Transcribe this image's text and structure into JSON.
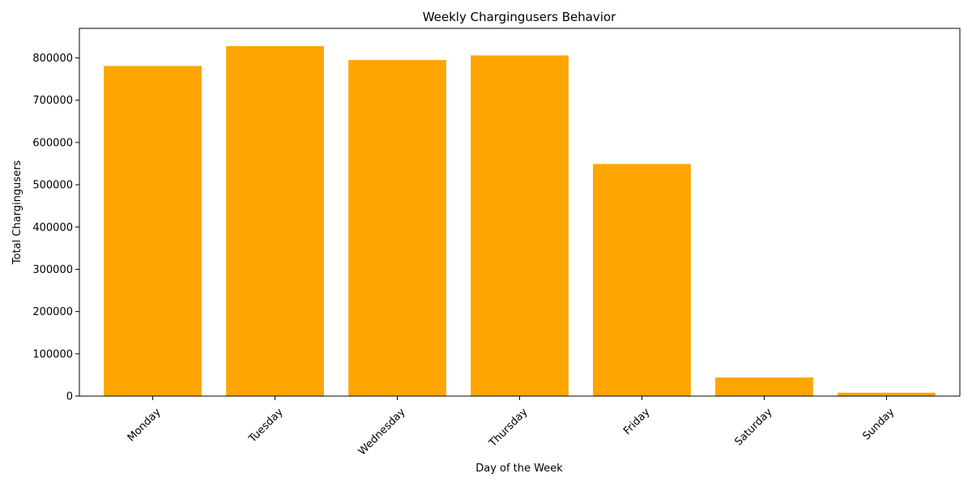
{
  "chart_data": {
    "type": "bar",
    "title": "Weekly Chargingusers Behavior",
    "xlabel": "Day of the Week",
    "ylabel": "Total Chargingusers",
    "categories": [
      "Monday",
      "Tuesday",
      "Wednesday",
      "Thursday",
      "Friday",
      "Saturday",
      "Sunday"
    ],
    "values": [
      781000,
      828000,
      795000,
      806000,
      549000,
      44000,
      8000
    ],
    "ylim": [
      0,
      870000
    ],
    "yticks": [
      0,
      100000,
      200000,
      300000,
      400000,
      500000,
      600000,
      700000,
      800000
    ],
    "ytick_labels": [
      "0",
      "100000",
      "200000",
      "300000",
      "400000",
      "500000",
      "600000",
      "700000",
      "800000"
    ],
    "bar_color": "#FFA500",
    "grid": false,
    "legend": "none"
  }
}
